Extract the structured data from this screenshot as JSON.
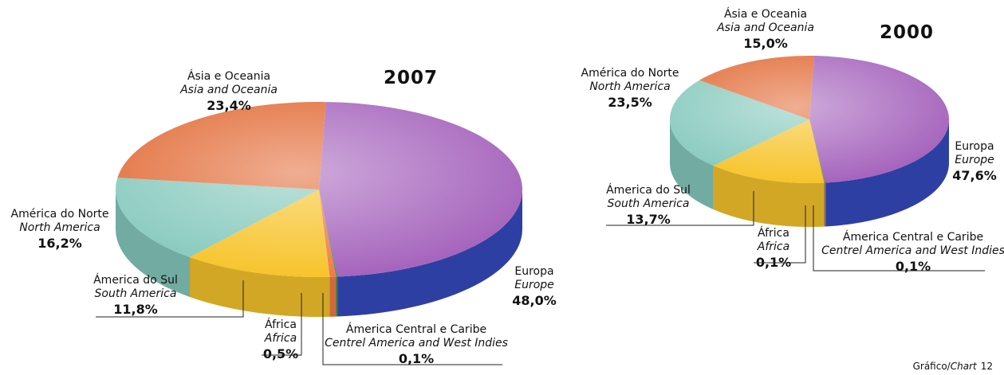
{
  "chart_data": [
    {
      "type": "pie",
      "title": "2007",
      "categories": [
        "Europa",
        "Ámerica Central e Caribe",
        "África",
        "Ámerica do Sul",
        "América do Norte",
        "Ásia e Oceania"
      ],
      "categories_translation": [
        "Europe",
        "Centrel America and West Indies",
        "Africa",
        "South America",
        "North America",
        "Asia and Oceania"
      ],
      "values": [
        48.0,
        0.1,
        0.5,
        11.8,
        16.2,
        23.4
      ],
      "value_labels": [
        "48,0%",
        "0,1%",
        "0,5%",
        "11,8%",
        "16,2%",
        "23,4%"
      ],
      "colors": [
        "#a665bd",
        "#2f9a55",
        "#f27a4a",
        "#f7c42c",
        "#86c9bd",
        "#e26c38"
      ]
    },
    {
      "type": "pie",
      "title": "2000",
      "categories": [
        "Europa",
        "Ámerica Central e Caribe",
        "África",
        "Ámerica do Sul",
        "América do Norte",
        "Ásia e Oceania"
      ],
      "categories_translation": [
        "Europe",
        "Centrel America and West Indies",
        "Africa",
        "South America",
        "North America",
        "Asia and Oceania"
      ],
      "values": [
        47.6,
        0.1,
        0.1,
        13.7,
        23.5,
        15.0
      ],
      "value_labels": [
        "47,6%",
        "0,1%",
        "0,1%",
        "13,7%",
        "23,5%",
        "15,0%"
      ],
      "colors": [
        "#a665bd",
        "#2f9a55",
        "#f27a4a",
        "#f7c42c",
        "#86c9bd",
        "#e26c38"
      ]
    }
  ],
  "footer": {
    "label": "Gráfico/",
    "label_translation": "Chart",
    "number": 12
  }
}
